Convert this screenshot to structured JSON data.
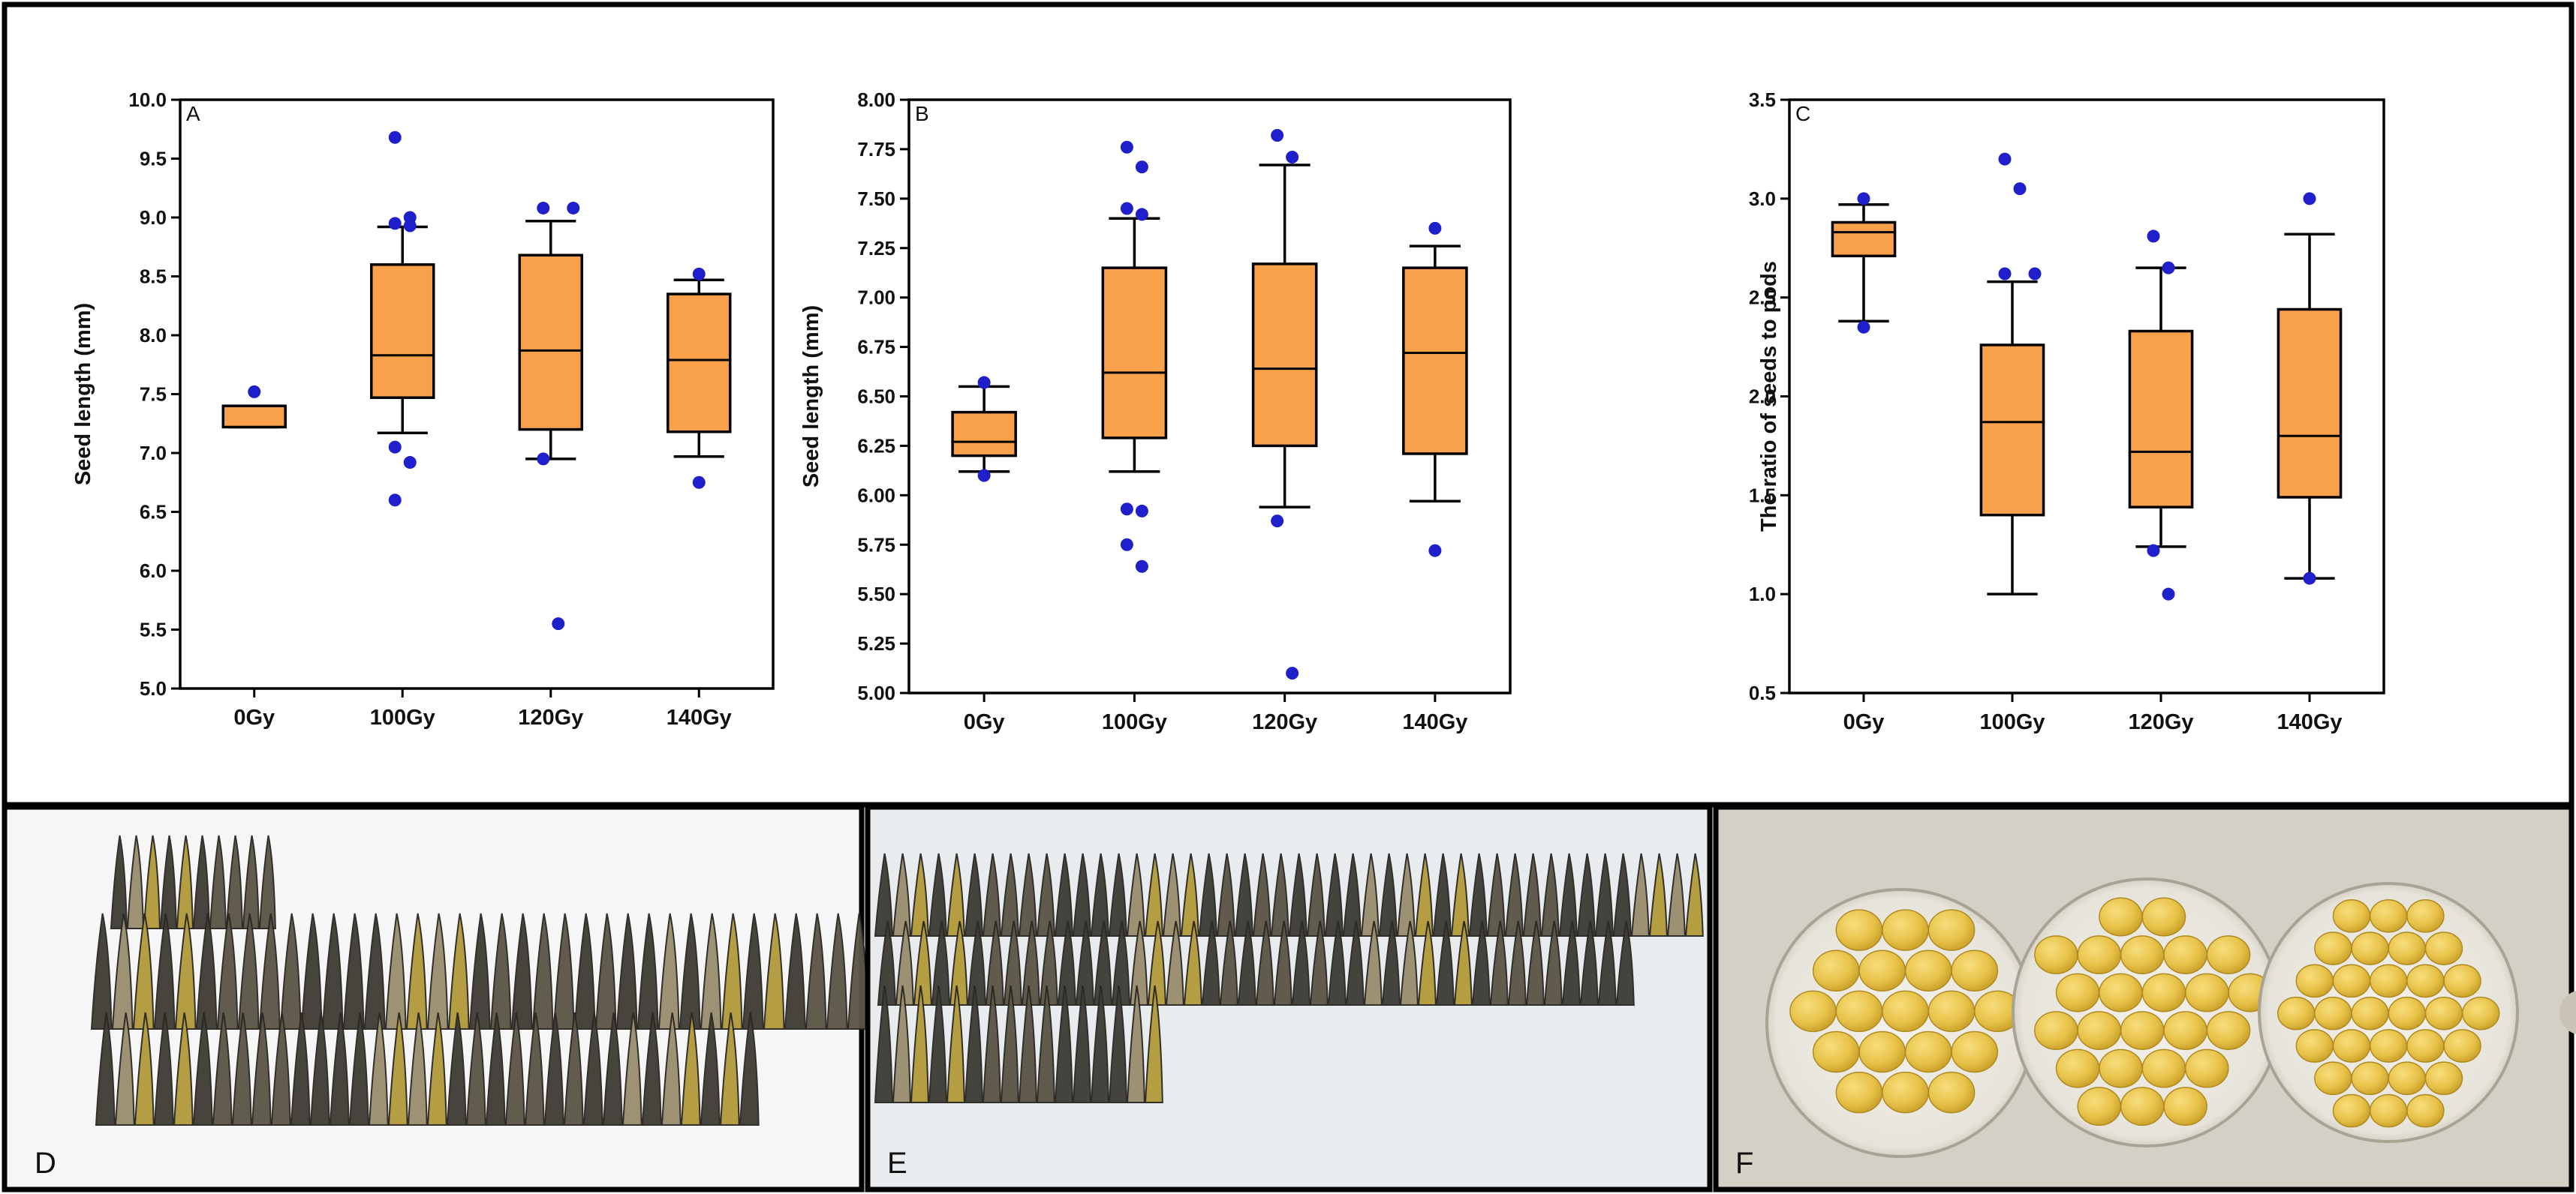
{
  "chart_data": [
    {
      "type": "box",
      "panel_label": "A",
      "ylabel": "Seed length (mm)",
      "xlabel": "",
      "ylim": [
        5.0,
        10.0
      ],
      "yticks": [
        "5.0",
        "5.5",
        "6.0",
        "6.5",
        "7.0",
        "7.5",
        "8.0",
        "8.5",
        "9.0",
        "9.5",
        "10.0"
      ],
      "categories": [
        "0Gy",
        "100Gy",
        "120Gy",
        "140Gy"
      ],
      "color": "#F9A04B",
      "outlier_color": "#1F1FCC",
      "boxes": [
        {
          "q1": 7.22,
          "median": 7.22,
          "q3": 7.4,
          "whisker_low": 7.22,
          "whisker_high": 7.4,
          "outliers": [
            7.52
          ]
        },
        {
          "q1": 7.47,
          "median": 7.83,
          "q3": 8.6,
          "whisker_low": 7.17,
          "whisker_high": 8.92,
          "outliers": [
            9.68,
            9.0,
            8.95,
            8.93,
            7.05,
            6.92,
            6.6
          ]
        },
        {
          "q1": 7.2,
          "median": 7.87,
          "q3": 8.68,
          "whisker_low": 6.95,
          "whisker_high": 8.97,
          "outliers": [
            9.08,
            9.08,
            6.95,
            5.55
          ]
        },
        {
          "q1": 7.18,
          "median": 7.79,
          "q3": 8.35,
          "whisker_low": 6.97,
          "whisker_high": 8.47,
          "outliers": [
            8.52,
            6.75
          ]
        }
      ]
    },
    {
      "type": "box",
      "panel_label": "B",
      "ylabel": "Seed length (mm)",
      "xlabel": "",
      "ylim": [
        5.0,
        8.0
      ],
      "yticks": [
        "5.00",
        "5.25",
        "5.50",
        "5.75",
        "6.00",
        "6.25",
        "6.50",
        "6.75",
        "7.00",
        "7.25",
        "7.50",
        "7.75",
        "8.00"
      ],
      "categories": [
        "0Gy",
        "100Gy",
        "120Gy",
        "140Gy"
      ],
      "color": "#F9A04B",
      "outlier_color": "#1F1FCC",
      "boxes": [
        {
          "q1": 6.2,
          "median": 6.27,
          "q3": 6.42,
          "whisker_low": 6.12,
          "whisker_high": 6.55,
          "outliers": [
            6.57,
            6.1
          ]
        },
        {
          "q1": 6.29,
          "median": 6.62,
          "q3": 7.15,
          "whisker_low": 6.12,
          "whisker_high": 7.4,
          "outliers": [
            7.76,
            7.66,
            7.45,
            7.42,
            5.93,
            5.92,
            5.75,
            5.64
          ]
        },
        {
          "q1": 6.25,
          "median": 6.64,
          "q3": 7.17,
          "whisker_low": 5.94,
          "whisker_high": 7.67,
          "outliers": [
            7.82,
            7.71,
            5.87,
            5.1
          ]
        },
        {
          "q1": 6.21,
          "median": 6.72,
          "q3": 7.15,
          "whisker_low": 5.97,
          "whisker_high": 7.26,
          "outliers": [
            7.35,
            5.72
          ]
        }
      ]
    },
    {
      "type": "box",
      "panel_label": "C",
      "ylabel": "The ratio of seeds to pods",
      "xlabel": "",
      "ylim": [
        0.5,
        3.5
      ],
      "yticks": [
        "0.5",
        "1.0",
        "1.5",
        "2.0",
        "2.5",
        "3.0",
        "3.5"
      ],
      "categories": [
        "0Gy",
        "100Gy",
        "120Gy",
        "140Gy"
      ],
      "color": "#F9A04B",
      "outlier_color": "#1F1FCC",
      "boxes": [
        {
          "q1": 2.71,
          "median": 2.83,
          "q3": 2.88,
          "whisker_low": 2.38,
          "whisker_high": 2.97,
          "outliers": [
            3.0,
            2.35
          ]
        },
        {
          "q1": 1.4,
          "median": 1.87,
          "q3": 2.26,
          "whisker_low": 1.0,
          "whisker_high": 2.58,
          "outliers": [
            3.2,
            3.05,
            2.62,
            2.62
          ]
        },
        {
          "q1": 1.44,
          "median": 1.72,
          "q3": 2.33,
          "whisker_low": 1.24,
          "whisker_high": 2.65,
          "outliers": [
            2.81,
            2.65,
            1.22,
            1.0
          ]
        },
        {
          "q1": 1.49,
          "median": 1.8,
          "q3": 2.44,
          "whisker_low": 1.08,
          "whisker_high": 2.82,
          "outliers": [
            3.0,
            1.08
          ]
        }
      ]
    }
  ],
  "photos": [
    {
      "label": "D",
      "subject": "pods"
    },
    {
      "label": "E",
      "subject": "pods"
    },
    {
      "label": "F",
      "subject": "seeds"
    }
  ],
  "colors": {
    "frame": "#000000",
    "box_fill": "#F9A04B",
    "outlier": "#1F1FCC",
    "photo_bg_d": "#F6F6F6",
    "photo_bg_e": "#E9ECEF",
    "photo_bg_f": "#D5D0C6",
    "pod_dark": "#3F3D36",
    "pod_mid": "#5C5648",
    "pod_light": "#9A8E6E",
    "pod_yellow": "#B39A3C",
    "seed": "#E8C34A",
    "seed_shade": "#C89E26"
  }
}
